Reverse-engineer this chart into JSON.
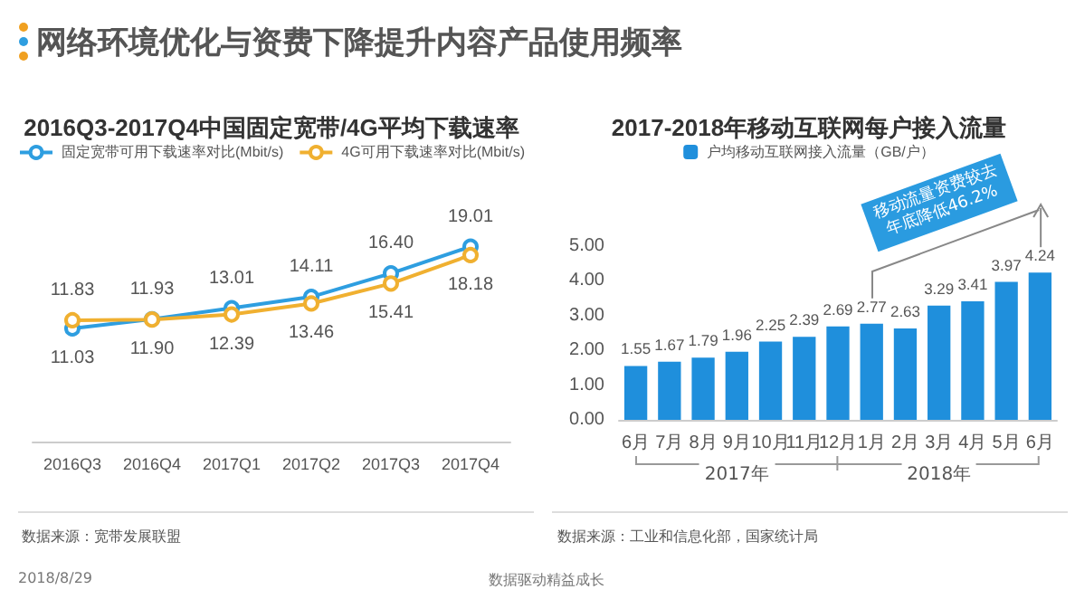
{
  "chart_data": [
    {
      "type": "line",
      "title": "2016Q3-2017Q4中国固定宽带/4G平均下载速率",
      "categories": [
        "2016Q3",
        "2016Q4",
        "2017Q1",
        "2017Q2",
        "2017Q3",
        "2017Q4"
      ],
      "series": [
        {
          "name": "固定宽带可用下载速率对比(Mbit/s)",
          "color": "#2e9ee0",
          "values": [
            11.03,
            11.93,
            13.01,
            14.11,
            16.4,
            19.01
          ],
          "value_labels": [
            "11.03",
            "11.93",
            "13.01",
            "14.11",
            "16.40",
            "19.01"
          ]
        },
        {
          "name": "4G可用下载速率对比(Mbit/s)",
          "color": "#f0b030",
          "values": [
            11.83,
            11.9,
            12.39,
            13.46,
            15.41,
            18.18
          ],
          "value_labels": [
            "11.83",
            "11.90",
            "12.39",
            "13.46",
            "15.41",
            "18.18"
          ]
        }
      ],
      "marker": "circle",
      "legend": "top",
      "grid": false,
      "annotations": [
        "网络环境优化与资费下降提升内容产品使用频率",
        "数据来源：宽带发展联盟",
        "2018/8/29",
        "数据驱动精益成长"
      ]
    },
    {
      "type": "bar",
      "title": "2017-2018年移动互联网每户接入流量",
      "categories": [
        "6月",
        "7月",
        "8月",
        "9月",
        "10月",
        "11月",
        "12月",
        "1月",
        "2月",
        "3月",
        "4月",
        "5月",
        "6月"
      ],
      "series": [
        {
          "name": "户均移动互联网接入流量（GB/户）",
          "color": "#1f8fdc",
          "values": [
            1.55,
            1.67,
            1.79,
            1.96,
            2.25,
            2.39,
            2.69,
            2.77,
            2.63,
            3.29,
            3.41,
            3.97,
            4.24
          ]
        }
      ],
      "ylim": [
        0,
        5
      ],
      "yticks": [
        {
          "value": 0,
          "label": "0.00"
        },
        {
          "value": 1,
          "label": "1.00"
        },
        {
          "value": 2,
          "label": "2.00"
        },
        {
          "value": 3,
          "label": "3.00"
        },
        {
          "value": 4,
          "label": "4.00"
        },
        {
          "value": 5,
          "label": "5.00"
        }
      ],
      "data_labels": true,
      "legend": "top",
      "grid": false,
      "annotations": [
        "移动流量资费较去年底降低46.2%",
        "2017年",
        "2018年",
        "数据来源：工业和信息化部，国家统计局"
      ]
    }
  ]
}
